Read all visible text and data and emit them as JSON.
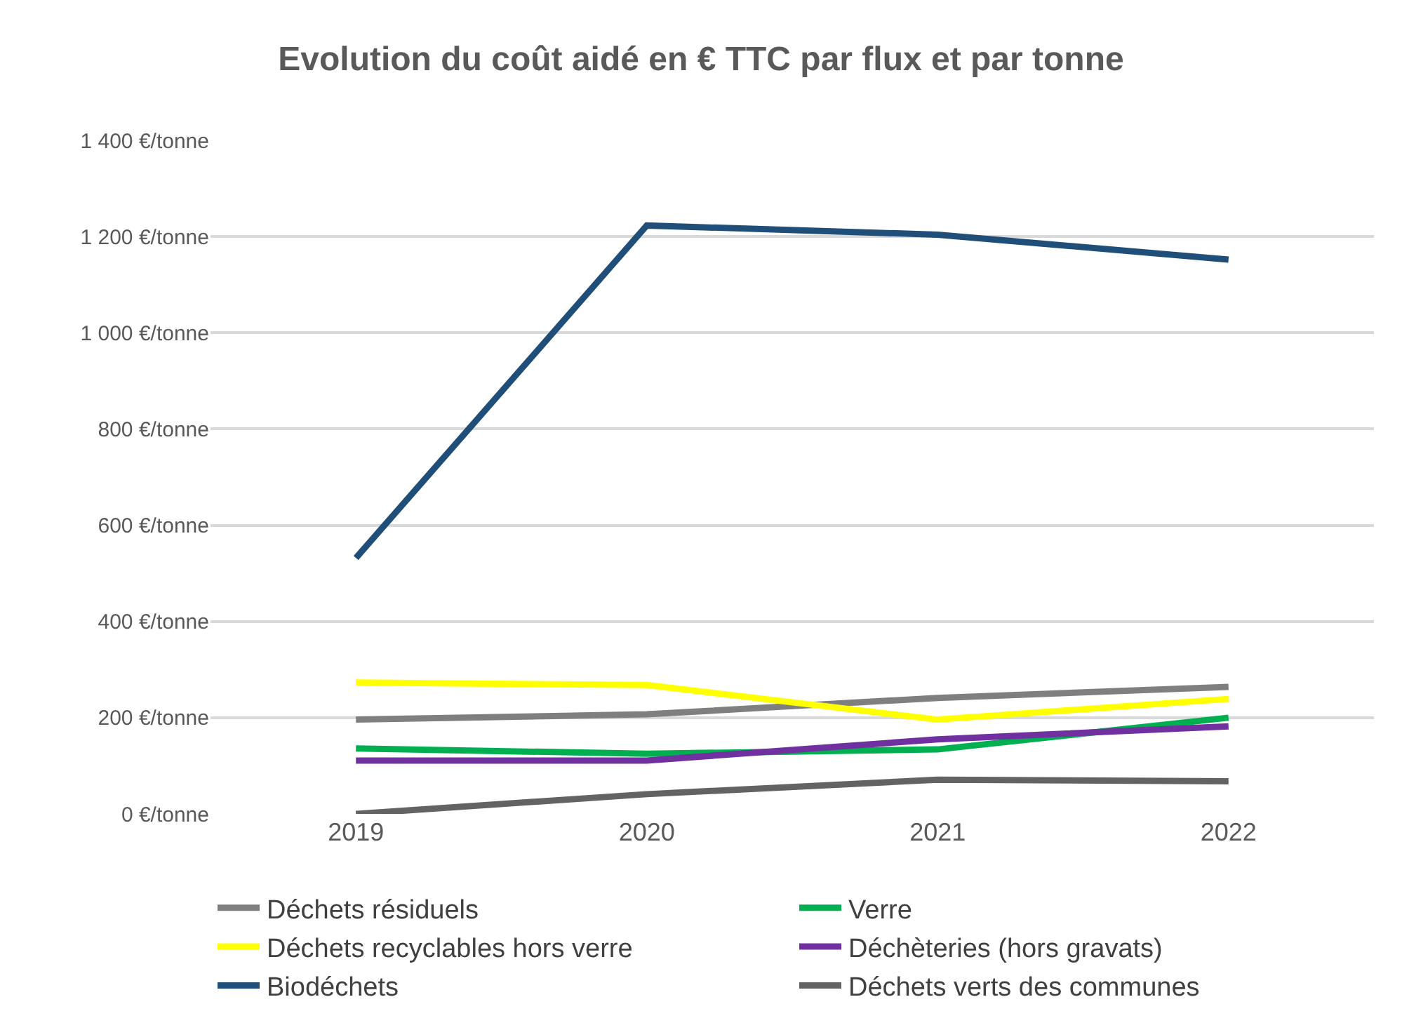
{
  "chart_data": {
    "type": "line",
    "title": "Evolution du coût aidé en € TTC par flux et par tonne",
    "categories": [
      "2019",
      "2020",
      "2021",
      "2022"
    ],
    "series": [
      {
        "name": "Déchets résiduels",
        "color": "#7f7f7f",
        "values": [
          196,
          207,
          241,
          264
        ]
      },
      {
        "name": "Verre",
        "color": "#00b050",
        "values": [
          136,
          125,
          134,
          200
        ]
      },
      {
        "name": "Déchets recyclables hors verre",
        "color": "#ffff00",
        "values": [
          273,
          268,
          196,
          239
        ]
      },
      {
        "name": "Déchèteries (hors gravats)",
        "color": "#7030a0",
        "values": [
          111,
          111,
          155,
          182
        ]
      },
      {
        "name": "Biodéchets",
        "color": "#1f4e79",
        "values": [
          532,
          1223,
          1204,
          1152
        ]
      },
      {
        "name": "Déchets verts des communes",
        "color": "#636363",
        "values": [
          0,
          41,
          71,
          68
        ]
      }
    ],
    "ylim": [
      0,
      1400
    ],
    "yticks": [
      {
        "value": 0,
        "label": "0 €/tonne"
      },
      {
        "value": 200,
        "label": "200 €/tonne"
      },
      {
        "value": 400,
        "label": "400 €/tonne"
      },
      {
        "value": 600,
        "label": "600 €/tonne"
      },
      {
        "value": 800,
        "label": "800 €/tonne"
      },
      {
        "value": 1000,
        "label": "1 000 €/tonne"
      },
      {
        "value": 1200,
        "label": "1 200 €/tonne"
      },
      {
        "value": 1400,
        "label": "1 400 €/tonne"
      }
    ],
    "grid": "y",
    "legend": "bottom",
    "marker": "none",
    "line_style": "solid"
  }
}
